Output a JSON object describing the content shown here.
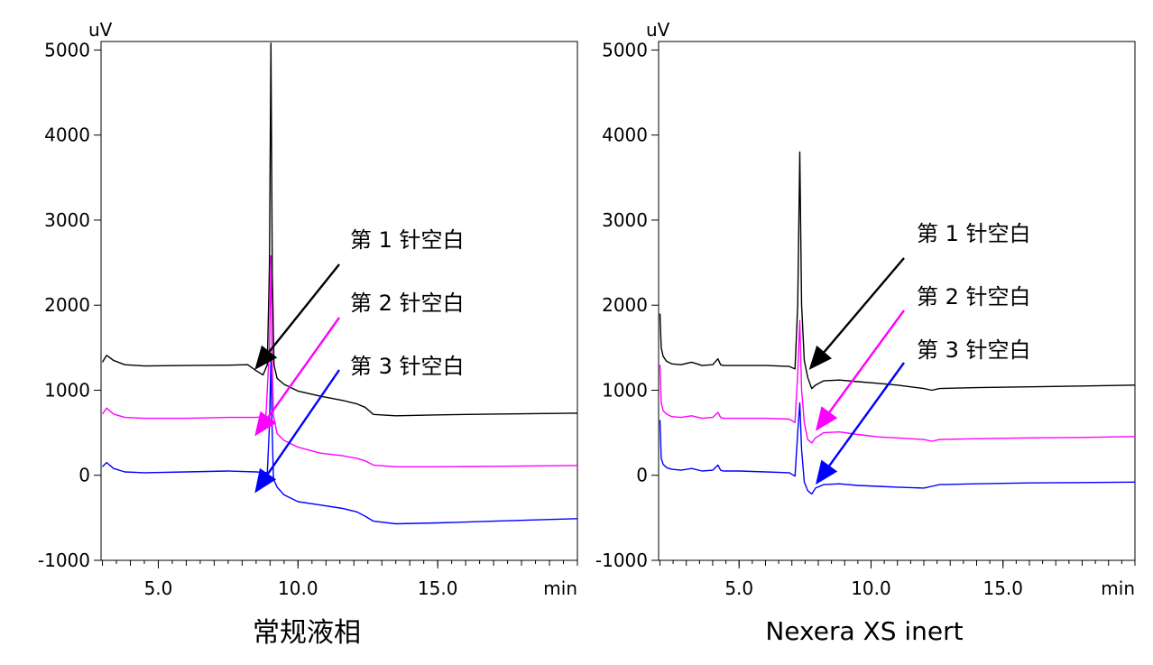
{
  "chart_data": [
    {
      "type": "line",
      "title": "常规液相",
      "ylabel": "uV",
      "xlabel": "min",
      "xlim": [
        2.95,
        20.0
      ],
      "ylim": [
        -1000,
        5100
      ],
      "x_ticks": [
        {
          "value": 5.0,
          "label": "5.0"
        },
        {
          "value": 10.0,
          "label": "10.0"
        },
        {
          "value": 15.0,
          "label": "15.0"
        }
      ],
      "y_ticks": [
        {
          "value": -1000,
          "label": "-1000"
        },
        {
          "value": 0,
          "label": "0"
        },
        {
          "value": 1000,
          "label": "1000"
        },
        {
          "value": 2000,
          "label": "2000"
        },
        {
          "value": 3000,
          "label": "3000"
        },
        {
          "value": 4000,
          "label": "4000"
        },
        {
          "value": 5000,
          "label": "5000"
        }
      ],
      "grid": false,
      "series": [
        {
          "name": "第 1 针空白",
          "color": "#000000",
          "x": [
            3.0,
            3.15,
            3.4,
            3.8,
            4.5,
            6.0,
            7.5,
            8.2,
            8.5,
            8.75,
            8.9,
            8.98,
            9.03,
            9.08,
            9.14,
            9.25,
            9.5,
            10.0,
            10.8,
            11.6,
            12.1,
            12.4,
            12.7,
            13.5,
            15.0,
            17.0,
            20.0
          ],
          "y": [
            1330,
            1410,
            1350,
            1300,
            1285,
            1290,
            1295,
            1300,
            1230,
            1180,
            1300,
            2500,
            5080,
            2400,
            1300,
            1140,
            1070,
            990,
            930,
            880,
            840,
            800,
            715,
            700,
            710,
            720,
            730
          ]
        },
        {
          "name": "第 2 针空白",
          "color": "#ff00ff",
          "x": [
            3.0,
            3.15,
            3.4,
            3.8,
            4.5,
            6.0,
            7.5,
            8.5,
            8.85,
            8.98,
            9.03,
            9.07,
            9.12,
            9.25,
            9.5,
            10.0,
            10.8,
            11.6,
            12.1,
            12.4,
            12.7,
            13.5,
            15.0,
            17.0,
            20.0
          ],
          "y": [
            720,
            790,
            720,
            680,
            670,
            670,
            680,
            680,
            690,
            1500,
            2580,
            1500,
            700,
            490,
            410,
            330,
            260,
            230,
            200,
            170,
            120,
            100,
            100,
            105,
            115
          ]
        },
        {
          "name": "第 3 针空白",
          "color": "#0000ff",
          "x": [
            3.0,
            3.15,
            3.4,
            3.8,
            4.5,
            6.0,
            7.5,
            8.5,
            8.9,
            8.98,
            9.03,
            9.07,
            9.12,
            9.25,
            9.5,
            10.0,
            10.8,
            11.6,
            12.1,
            12.4,
            12.7,
            13.5,
            15.0,
            17.0,
            20.0
          ],
          "y": [
            100,
            150,
            80,
            40,
            30,
            40,
            50,
            40,
            30,
            600,
            1340,
            600,
            -40,
            -140,
            -230,
            -310,
            -350,
            -390,
            -430,
            -480,
            -540,
            -570,
            -560,
            -540,
            -510
          ]
        }
      ],
      "annotations": [
        {
          "text": "第 1 针空白",
          "color": "#000000",
          "points_at_series": "第 1 针空白",
          "target": {
            "x": 8.45,
            "y": 1240
          }
        },
        {
          "text": "第 2 针空白",
          "color": "#ff00ff",
          "points_at_series": "第 2 针空白",
          "target": {
            "x": 8.45,
            "y": 460
          }
        },
        {
          "text": "第 3 针空白",
          "color": "#0000ff",
          "points_at_series": "第 3 针空白",
          "target": {
            "x": 8.45,
            "y": -210
          }
        }
      ]
    },
    {
      "type": "line",
      "title": "Nexera XS inert",
      "ylabel": "uV",
      "xlabel": "min",
      "xlim": [
        1.95,
        20.0
      ],
      "ylim": [
        -1000,
        5100
      ],
      "x_ticks": [
        {
          "value": 5.0,
          "label": "5.0"
        },
        {
          "value": 10.0,
          "label": "10.0"
        },
        {
          "value": 15.0,
          "label": "15.0"
        }
      ],
      "y_ticks": [
        {
          "value": -1000,
          "label": "-1000"
        },
        {
          "value": 0,
          "label": "0"
        },
        {
          "value": 1000,
          "label": "1000"
        },
        {
          "value": 2000,
          "label": "2000"
        },
        {
          "value": 3000,
          "label": "3000"
        },
        {
          "value": 4000,
          "label": "4000"
        },
        {
          "value": 5000,
          "label": "5000"
        }
      ],
      "grid": false,
      "series": [
        {
          "name": "第 1 针空白",
          "color": "#000000",
          "x": [
            2.0,
            2.05,
            2.12,
            2.25,
            2.45,
            2.8,
            3.2,
            3.6,
            4.0,
            4.2,
            4.3,
            4.4,
            5.0,
            6.0,
            6.9,
            7.12,
            7.22,
            7.3,
            7.37,
            7.47,
            7.6,
            7.75,
            7.9,
            8.2,
            8.8,
            9.5,
            10.3,
            11.0,
            12.0,
            12.3,
            12.6,
            14.0,
            16.0,
            18.0,
            20.0
          ],
          "y": [
            1900,
            1500,
            1400,
            1340,
            1310,
            1300,
            1330,
            1290,
            1300,
            1370,
            1300,
            1290,
            1290,
            1290,
            1280,
            1250,
            2000,
            3800,
            2000,
            1350,
            1150,
            1020,
            1060,
            1110,
            1120,
            1100,
            1080,
            1060,
            1020,
            1000,
            1020,
            1030,
            1040,
            1050,
            1060
          ]
        },
        {
          "name": "第 2 针空白",
          "color": "#ff00ff",
          "x": [
            2.0,
            2.05,
            2.12,
            2.25,
            2.45,
            2.8,
            3.2,
            3.6,
            4.0,
            4.2,
            4.3,
            4.4,
            5.0,
            6.0,
            6.9,
            7.12,
            7.22,
            7.3,
            7.37,
            7.47,
            7.6,
            7.75,
            7.9,
            8.2,
            8.8,
            9.5,
            10.3,
            11.0,
            12.0,
            12.3,
            12.6,
            14.0,
            16.0,
            18.0,
            20.0
          ],
          "y": [
            1300,
            850,
            760,
            720,
            690,
            680,
            700,
            670,
            680,
            740,
            680,
            670,
            670,
            670,
            660,
            620,
            1200,
            1820,
            1000,
            620,
            420,
            380,
            440,
            500,
            510,
            480,
            450,
            440,
            420,
            400,
            420,
            430,
            440,
            445,
            455
          ]
        },
        {
          "name": "第 3 针空白",
          "color": "#0000ff",
          "x": [
            2.0,
            2.05,
            2.12,
            2.25,
            2.45,
            2.8,
            3.2,
            3.6,
            4.0,
            4.2,
            4.3,
            4.4,
            5.0,
            6.0,
            6.9,
            7.12,
            7.22,
            7.3,
            7.37,
            7.47,
            7.6,
            7.75,
            7.9,
            8.2,
            8.8,
            9.5,
            10.3,
            11.0,
            12.0,
            12.3,
            12.6,
            14.0,
            16.0,
            18.0,
            20.0
          ],
          "y": [
            650,
            200,
            130,
            90,
            70,
            60,
            80,
            50,
            60,
            120,
            60,
            50,
            50,
            40,
            30,
            -10,
            500,
            850,
            300,
            -80,
            -180,
            -220,
            -150,
            -110,
            -100,
            -120,
            -130,
            -140,
            -150,
            -130,
            -110,
            -100,
            -90,
            -85,
            -80
          ]
        }
      ],
      "annotations": [
        {
          "text": "第 1 针空白",
          "color": "#000000",
          "points_at_series": "第 1 针空白",
          "target": {
            "x": 7.65,
            "y": 1240
          }
        },
        {
          "text": "第 2 针空白",
          "color": "#ff00ff",
          "points_at_series": "第 2 针空白",
          "target": {
            "x": 7.9,
            "y": 520
          }
        },
        {
          "text": "第 3 针空白",
          "color": "#0000ff",
          "points_at_series": "第 3 针空白",
          "target": {
            "x": 7.9,
            "y": -110
          }
        }
      ]
    }
  ]
}
